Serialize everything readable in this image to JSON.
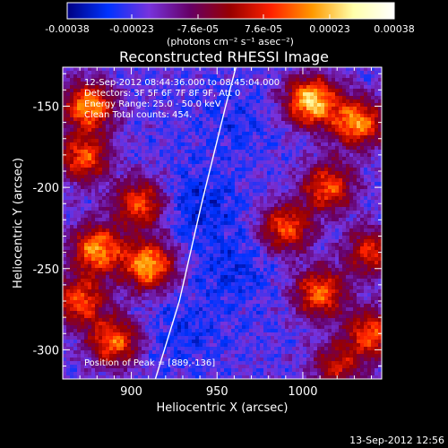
{
  "chart_data": {
    "type": "heatmap",
    "title": "Reconstructed RHESSI Image",
    "xlabel": "Heliocentric X (arcsec)",
    "ylabel": "Heliocentric Y (arcsec)",
    "xlim": [
      860,
      1046
    ],
    "ylim": [
      -318,
      -126
    ],
    "x_ticks": [
      "900",
      "950",
      "1000"
    ],
    "x_tick_values": [
      900,
      950,
      1000
    ],
    "y_ticks": [
      "-150",
      "-200",
      "-250",
      "-300"
    ],
    "y_tick_values": [
      -150,
      -200,
      -250,
      -300
    ],
    "colorbar": {
      "range": [
        -0.00038,
        0.00038
      ],
      "tick_labels": [
        "-0.00038",
        "-0.00023",
        "-7.6e-05",
        "7.6e-05",
        "0.00023",
        "0.00038"
      ],
      "tick_values": [
        -0.00038,
        -0.00023,
        -7.6e-05,
        7.6e-05,
        0.00023,
        0.00038
      ],
      "unit_label": "(photons cm⁻² s⁻¹ asec⁻²)",
      "colormap": [
        "#000080",
        "#0033ff",
        "#7733dd",
        "#660066",
        "#990000",
        "#ff2200",
        "#ff9900",
        "#ffffaa",
        "#ffffff"
      ]
    },
    "annotations": [
      "12-Sep-2012 08:44:36.000 to 08:45:04.000",
      "Detectors: 3F 5F 6F 7F 8F 9F, Att 0",
      "Energy Range: 25.0 - 50.0 keV",
      "Clean     Total counts: 454."
    ],
    "peak_label": "Position of Peak = [889,-136]",
    "peak": [
      889,
      -136
    ],
    "bright_regions": [
      {
        "x": 875,
        "y": -150,
        "strength": 0.85
      },
      {
        "x": 872,
        "y": -182,
        "strength": 0.7
      },
      {
        "x": 905,
        "y": -210,
        "strength": 0.7
      },
      {
        "x": 880,
        "y": -238,
        "strength": 0.85
      },
      {
        "x": 910,
        "y": -248,
        "strength": 0.9
      },
      {
        "x": 870,
        "y": -270,
        "strength": 0.7
      },
      {
        "x": 890,
        "y": -295,
        "strength": 0.75
      },
      {
        "x": 1005,
        "y": -147,
        "strength": 1.0
      },
      {
        "x": 1032,
        "y": -160,
        "strength": 0.85
      },
      {
        "x": 1015,
        "y": -200,
        "strength": 0.7
      },
      {
        "x": 990,
        "y": -225,
        "strength": 0.7
      },
      {
        "x": 1010,
        "y": -265,
        "strength": 0.75
      },
      {
        "x": 1040,
        "y": -290,
        "strength": 0.7
      },
      {
        "x": 1040,
        "y": -240,
        "strength": 0.6
      },
      {
        "x": 1020,
        "y": -310,
        "strength": 0.5
      }
    ],
    "dark_regions": [
      {
        "x": 940,
        "y": -210,
        "strength": 0.9
      },
      {
        "x": 960,
        "y": -250,
        "strength": 0.7
      },
      {
        "x": 930,
        "y": -290,
        "strength": 0.6
      },
      {
        "x": 960,
        "y": -160,
        "strength": 0.5
      }
    ],
    "limb_curve": [
      [
        914,
        -318
      ],
      [
        928,
        -270
      ],
      [
        941,
        -210
      ],
      [
        955,
        -150
      ],
      [
        961,
        -126
      ]
    ]
  },
  "footer_timestamp": "13-Sep-2012 12:56"
}
